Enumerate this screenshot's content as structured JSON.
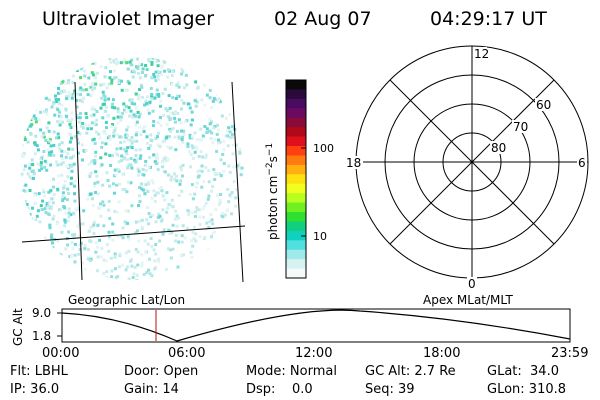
{
  "header": {
    "instrument": "Ultraviolet Imager",
    "date": "02 Aug 07",
    "time": "04:29:17 UT"
  },
  "left_panel": {
    "caption": "Geographic Lat/Lon"
  },
  "colorbar": {
    "unit_label": "photon cm",
    "unit_exp1": "−2",
    "unit_mid": "s",
    "unit_exp2": "−1",
    "ticks": [
      "100",
      "10"
    ],
    "colors": [
      "#0a0a0a",
      "#2a0a3a",
      "#4a0a60",
      "#6a0a60",
      "#8a0a3a",
      "#b00a1a",
      "#e0101a",
      "#ff4010",
      "#ff7a10",
      "#ffb010",
      "#ffe010",
      "#f0ff20",
      "#b8ff20",
      "#70f020",
      "#30e030",
      "#10d080",
      "#10d0c0",
      "#50e0e0",
      "#a0eaea",
      "#d8f2f2",
      "#f4fafa"
    ]
  },
  "polar_plot": {
    "caption": "Apex MLat/MLT",
    "mlt_labels": [
      "12",
      "18",
      "6",
      "0"
    ],
    "mlat_labels": [
      "60",
      "70",
      "80"
    ]
  },
  "timeline": {
    "ylabel": "GC Alt",
    "yticks": [
      "9.0",
      "1.8"
    ],
    "xticks": [
      "00:00",
      "06:00",
      "12:00",
      "18:00",
      "23:59"
    ],
    "current_time_marker": "04:29:17"
  },
  "status": {
    "flt": "Flt: LBHL",
    "door": "Door: Open",
    "mode": "Mode: Normal",
    "gc_alt": "GC Alt: 2.7 Re",
    "glat": "GLat:  34.0",
    "ip": "IP: 36.0",
    "gain": "Gain: 14",
    "dsp": "Dsp:    0.0",
    "seq": "Seq: 39",
    "glon": "GLon: 310.8"
  }
}
